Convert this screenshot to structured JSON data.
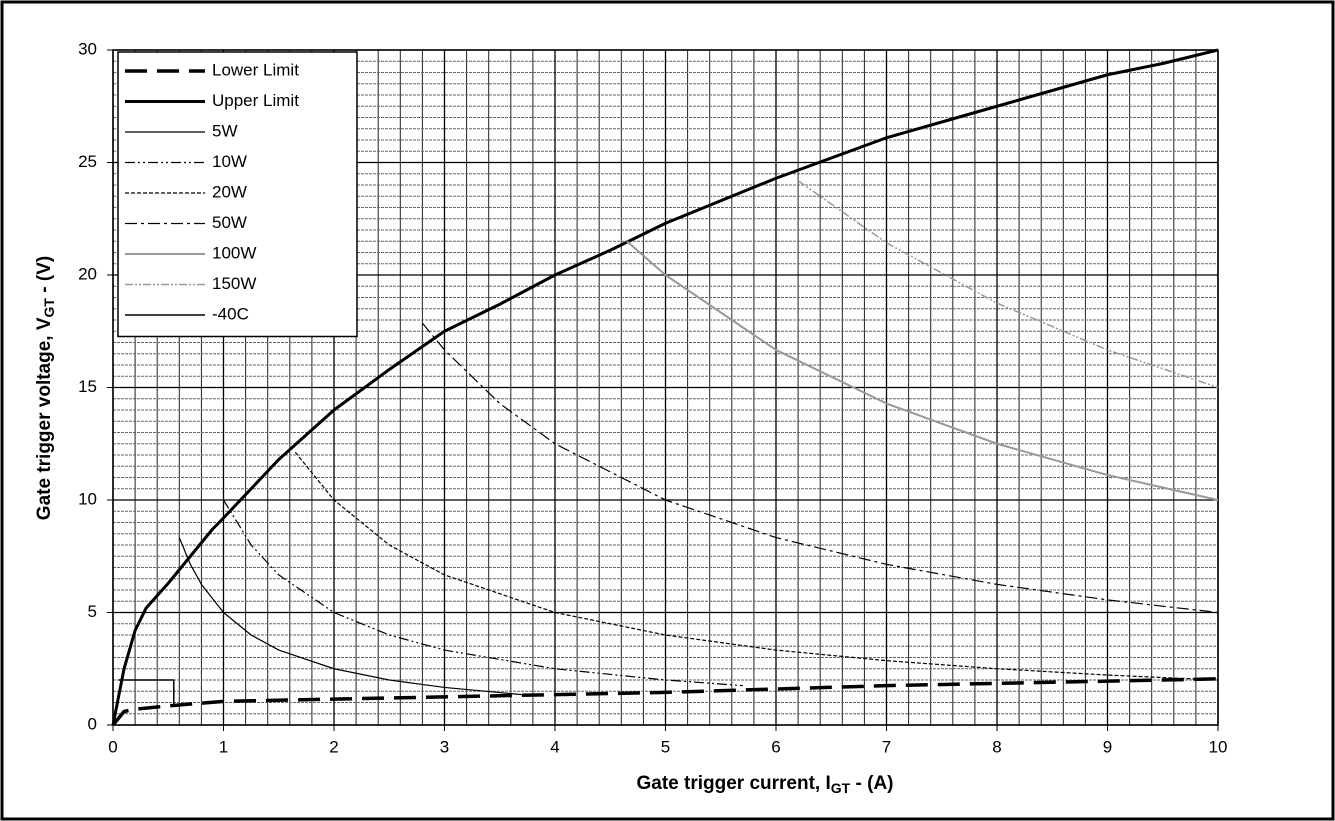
{
  "chart_data": {
    "type": "line",
    "xlabel": {
      "text": "Gate trigger current,  I",
      "sub": "GT",
      "rest": " - (A)"
    },
    "ylabel": {
      "text": "Gate trigger voltage,  V",
      "sub": "GT",
      "rest": " - (V)"
    },
    "xlim": [
      0,
      10
    ],
    "ylim": [
      0,
      30
    ],
    "xticks": [
      0,
      1,
      2,
      3,
      4,
      5,
      6,
      7,
      8,
      9,
      10
    ],
    "yticks": [
      0,
      5,
      10,
      15,
      20,
      25,
      30
    ],
    "grid": true,
    "minor_grid": {
      "x": 0.2,
      "y": 0.5
    },
    "legend": "upper left",
    "series": [
      {
        "name": "Lower Limit",
        "color": "#000000",
        "width": 3.5,
        "dash": "22,10",
        "x": [
          0,
          0.1,
          0.2,
          0.5,
          1,
          2,
          3,
          4,
          5,
          6,
          7,
          8,
          9,
          10
        ],
        "values": [
          0,
          0.6,
          0.7,
          0.85,
          1.05,
          1.15,
          1.25,
          1.35,
          1.45,
          1.6,
          1.75,
          1.85,
          1.95,
          2.05
        ]
      },
      {
        "name": "Upper Limit",
        "color": "#000000",
        "width": 3,
        "dash": "none",
        "x": [
          0,
          0.1,
          0.2,
          0.3,
          0.5,
          0.7,
          0.9,
          1,
          1.5,
          2,
          2.5,
          3,
          3.5,
          4,
          4.5,
          5,
          5.5,
          6,
          6.5,
          7,
          7.5,
          8,
          8.5,
          9,
          9.5,
          10
        ],
        "values": [
          0,
          2.5,
          4.2,
          5.2,
          6.3,
          7.5,
          8.7,
          9.2,
          11.8,
          14,
          15.8,
          17.5,
          18.7,
          20,
          21.1,
          22.3,
          23.3,
          24.3,
          25.2,
          26.1,
          26.8,
          27.5,
          28.2,
          28.9,
          29.4,
          30
        ]
      },
      {
        "name": "5W",
        "color": "#000000",
        "width": 1.2,
        "dash": "none",
        "x": [
          0.6,
          0.7,
          0.8,
          1,
          1.25,
          1.5,
          2,
          2.5,
          3,
          3.7
        ],
        "values": [
          8.33,
          7.14,
          6.25,
          5,
          4,
          3.33,
          2.5,
          2,
          1.67,
          1.35
        ]
      },
      {
        "name": "10W",
        "color": "#000000",
        "width": 1.2,
        "dash": "10,3,2,3,2,3",
        "x": [
          1,
          1.25,
          1.5,
          2,
          2.5,
          3,
          4,
          5,
          5.7
        ],
        "values": [
          10,
          8,
          6.67,
          5,
          4,
          3.33,
          2.5,
          2,
          1.75
        ]
      },
      {
        "name": "20W",
        "color": "#000000",
        "width": 1.2,
        "dash": "4,2",
        "x": [
          1.65,
          2,
          2.5,
          3,
          4,
          5,
          6,
          7,
          8,
          9,
          10
        ],
        "values": [
          12.12,
          10,
          8,
          6.67,
          5,
          4,
          3.33,
          2.86,
          2.5,
          2.22,
          2
        ]
      },
      {
        "name": "50W",
        "color": "#000000",
        "width": 1.2,
        "dash": "12,4,3,4",
        "x": [
          2.8,
          3,
          3.5,
          4,
          5,
          6,
          7,
          8,
          9,
          10
        ],
        "values": [
          17.86,
          16.67,
          14.29,
          12.5,
          10,
          8.33,
          7.14,
          6.25,
          5.56,
          5
        ]
      },
      {
        "name": "100W",
        "color": "#999999",
        "width": 2,
        "dash": "none",
        "x": [
          4.65,
          5,
          6,
          7,
          8,
          9,
          10
        ],
        "values": [
          21.5,
          20,
          16.67,
          14.29,
          12.5,
          11.11,
          10
        ]
      },
      {
        "name": "150W",
        "color": "#999999",
        "width": 1.5,
        "dash": "8,2,2,2,2,2",
        "x": [
          6.2,
          7,
          8,
          9,
          10
        ],
        "values": [
          24.19,
          21.43,
          18.75,
          16.67,
          15
        ]
      },
      {
        "name": "-40C",
        "color": "#000000",
        "width": 1.5,
        "dash": "none",
        "x": [
          0.05,
          0.55,
          0.55
        ],
        "values": [
          2,
          2,
          0.8
        ]
      }
    ]
  }
}
